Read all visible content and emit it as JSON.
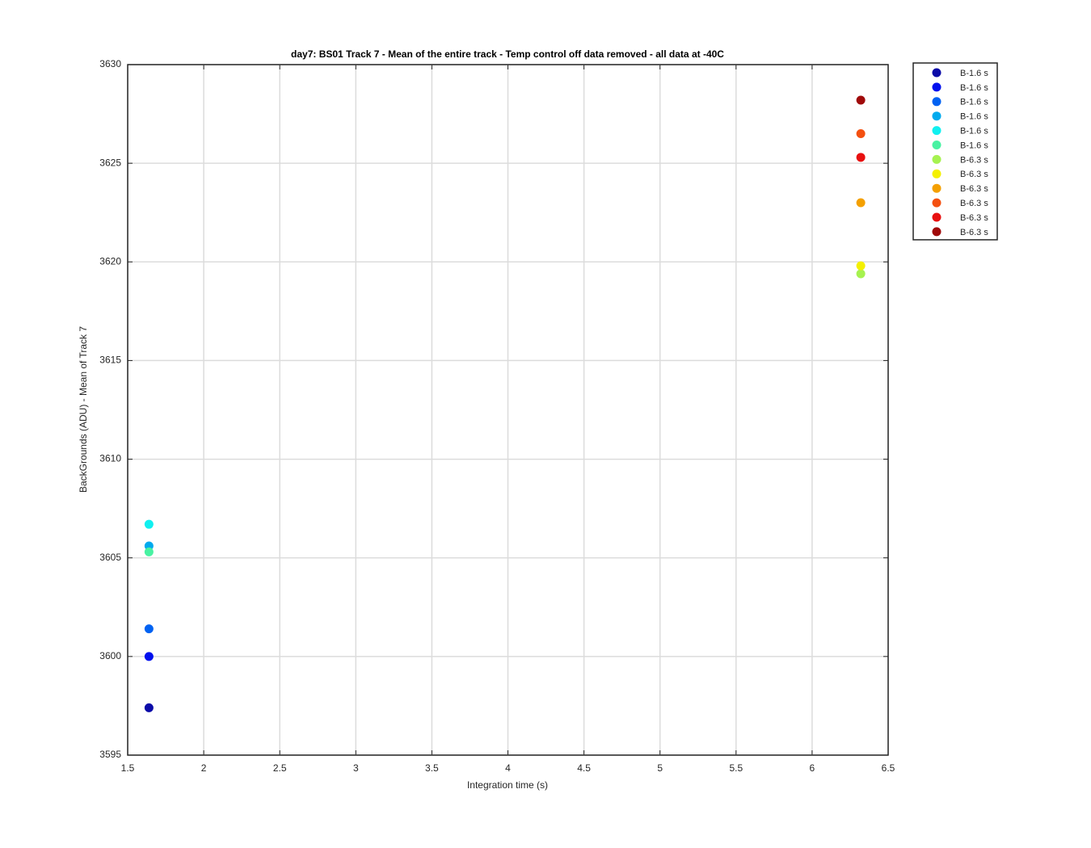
{
  "chart_data": {
    "type": "scatter",
    "title": "day7: BS01  Track 7 - Mean of the entire track - Temp control off data removed - all data at -40C",
    "x_label": "Integration time (s)",
    "y_label": "BackGrounds (ADU) - Mean of Track 7",
    "xlim": [
      1.5,
      6.5
    ],
    "ylim": [
      3595,
      3630
    ],
    "xticks": [
      1.5,
      2,
      2.5,
      3,
      3.5,
      4,
      4.5,
      5,
      5.5,
      6,
      6.5
    ],
    "yticks": [
      3595,
      3600,
      3605,
      3610,
      3615,
      3620,
      3625,
      3630
    ],
    "grid": true,
    "legend": "outside-top-right",
    "series": [
      {
        "name": "B-1.6 s",
        "color": "#0b0ba8",
        "x": [
          1.64
        ],
        "values": [
          3597.4
        ]
      },
      {
        "name": "B-1.6 s",
        "color": "#0010ee",
        "x": [
          1.64
        ],
        "values": [
          3600.0
        ]
      },
      {
        "name": "B-1.6 s",
        "color": "#0062f2",
        "x": [
          1.64
        ],
        "values": [
          3601.4
        ]
      },
      {
        "name": "B-1.6 s",
        "color": "#00aaee",
        "x": [
          1.64
        ],
        "values": [
          3605.6
        ]
      },
      {
        "name": "B-1.6 s",
        "color": "#10f0f0",
        "x": [
          1.64
        ],
        "values": [
          3606.7
        ]
      },
      {
        "name": "B-1.6 s",
        "color": "#48f2a2",
        "x": [
          1.64
        ],
        "values": [
          3605.3
        ]
      },
      {
        "name": "B-6.3 s",
        "color": "#a6f250",
        "x": [
          6.32
        ],
        "values": [
          3619.4
        ]
      },
      {
        "name": "B-6.3 s",
        "color": "#f4f000",
        "x": [
          6.32
        ],
        "values": [
          3619.8
        ]
      },
      {
        "name": "B-6.3 s",
        "color": "#f4a000",
        "x": [
          6.32
        ],
        "values": [
          3623.0
        ]
      },
      {
        "name": "B-6.3 s",
        "color": "#f45010",
        "x": [
          6.32
        ],
        "values": [
          3626.5
        ]
      },
      {
        "name": "B-6.3 s",
        "color": "#e81010",
        "x": [
          6.32
        ],
        "values": [
          3625.3
        ]
      },
      {
        "name": "B-6.3 s",
        "color": "#a00a0a",
        "x": [
          6.32
        ],
        "values": [
          3628.2
        ]
      }
    ]
  }
}
